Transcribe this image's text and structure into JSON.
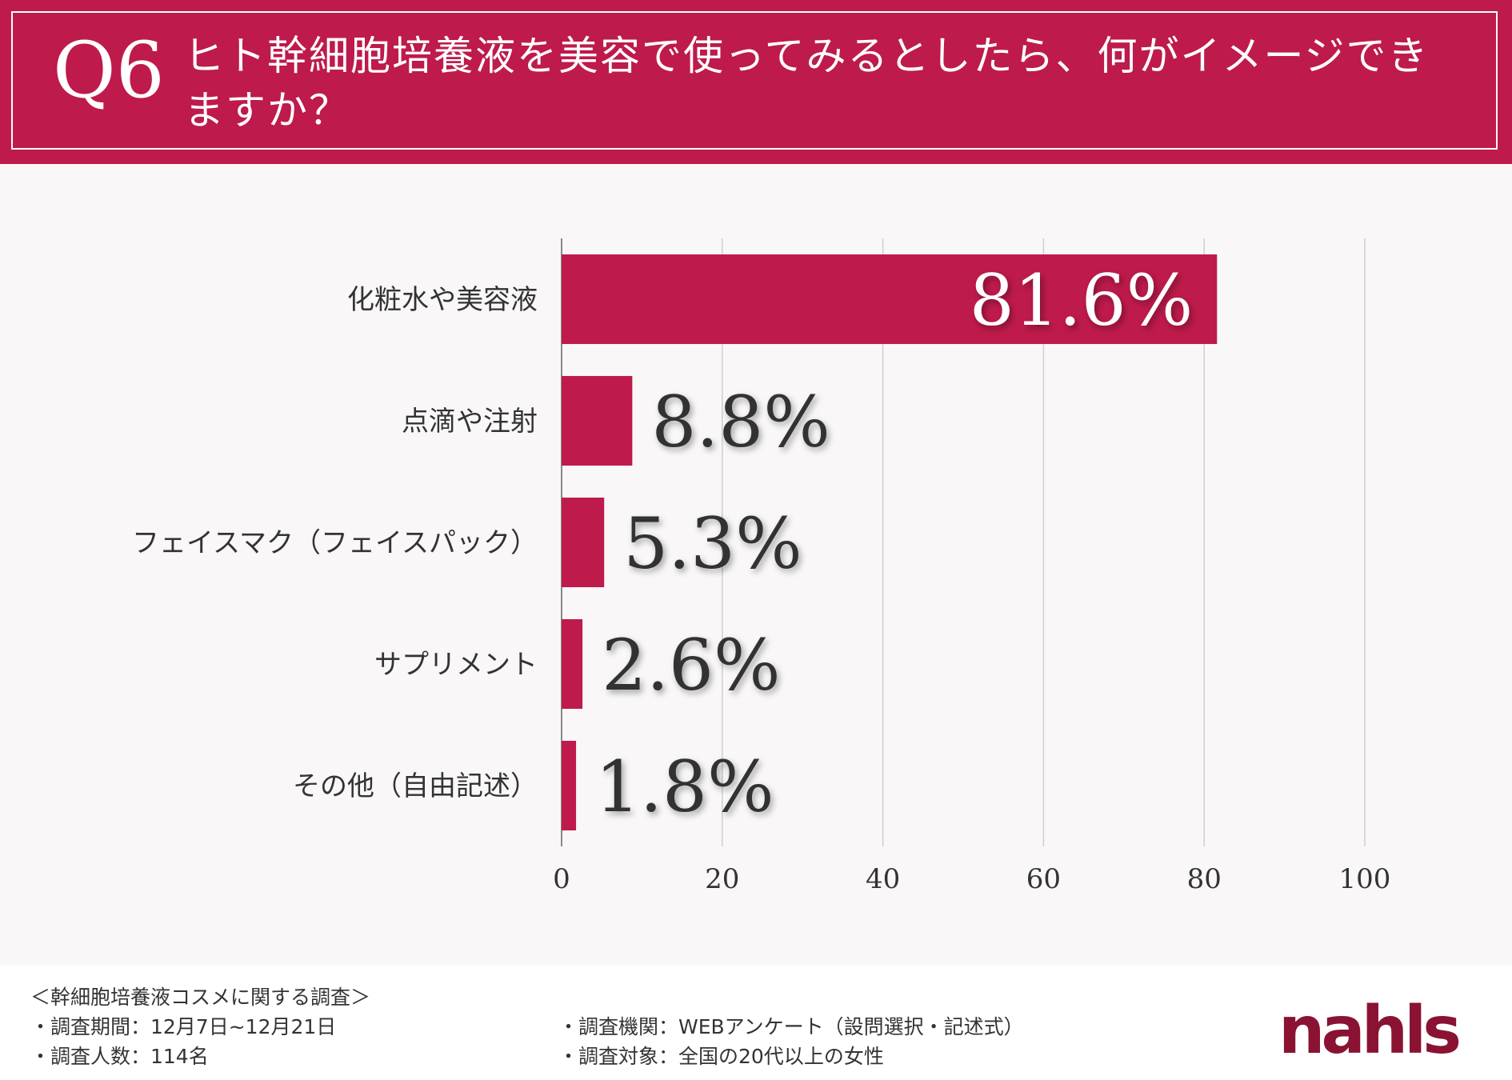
{
  "header": {
    "q_label": "Q6",
    "title": "ヒト幹細胞培養液を美容で使ってみるとしたら、何がイメージできますか？"
  },
  "chart_data": {
    "type": "bar",
    "orientation": "horizontal",
    "title": "ヒト幹細胞培養液を美容で使ってみるとしたら、何がイメージできますか？",
    "categories": [
      "化粧水や美容液",
      "点滴や注射",
      "フェイスマク（フェイスパック）",
      "サプリメント",
      "その他（自由記述）"
    ],
    "values": [
      81.6,
      8.8,
      5.3,
      2.6,
      1.8
    ],
    "value_labels": [
      "81.6%",
      "8.8%",
      "5.3%",
      "2.6%",
      "1.8%"
    ],
    "xlim": [
      0,
      100
    ],
    "xticks": [
      "0",
      "20",
      "40",
      "60",
      "80",
      "100"
    ],
    "xlabel": "",
    "ylabel": "",
    "grid": true,
    "bar_color": "#be1a4b"
  },
  "footer": {
    "survey_title": "＜幹細胞培養液コスメに関する調査＞",
    "period": "・調査期間：12月7日~12月21日",
    "respondents": "・調査人数：114名",
    "method": "・調査機関：WEBアンケート（設問選択・記述式）",
    "target": "・調査対象：全国の20代以上の女性",
    "logo": "nahls"
  }
}
